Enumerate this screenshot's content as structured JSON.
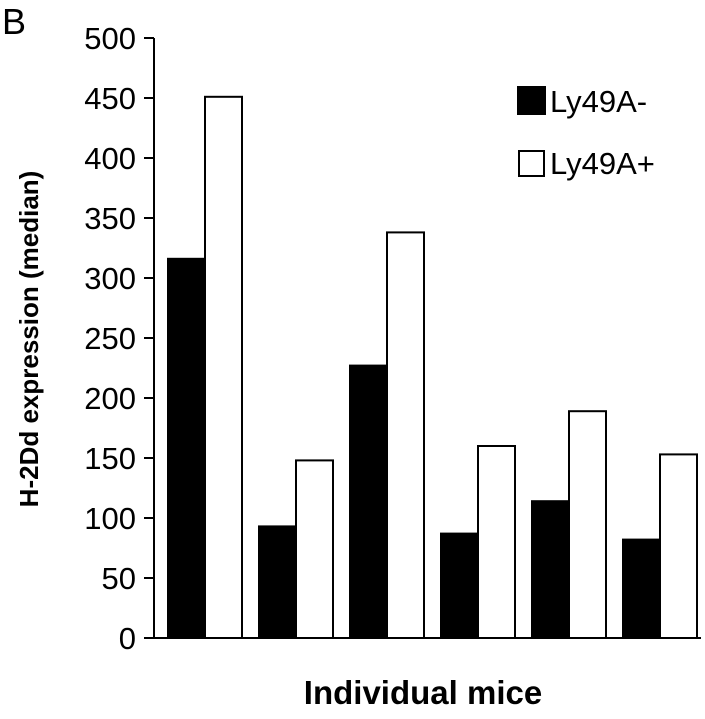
{
  "panel_label": "B",
  "colors": {
    "series_minus": "#000000",
    "series_plus": "#ffffff",
    "stroke": "#000000"
  },
  "chart_data": {
    "type": "bar",
    "categories": [
      "",
      "",
      "",
      "",
      "",
      ""
    ],
    "series": [
      {
        "name": "Ly49A-",
        "values": [
          316,
          93,
          227,
          87,
          114,
          82
        ]
      },
      {
        "name": "Ly49A+",
        "values": [
          451,
          148,
          338,
          160,
          189,
          153
        ]
      }
    ],
    "title": "",
    "xlabel": "Individual mice",
    "ylabel": "H-2Dd expression (median)",
    "ylim": [
      0,
      500
    ],
    "yticks": [
      0,
      50,
      100,
      150,
      200,
      250,
      300,
      350,
      400,
      450,
      500
    ],
    "ytick_labels": [
      "0",
      "50",
      "100",
      "150",
      "200",
      "250",
      "300",
      "350",
      "400",
      "450",
      "500"
    ],
    "grid": false,
    "legend_position": "top-right"
  }
}
